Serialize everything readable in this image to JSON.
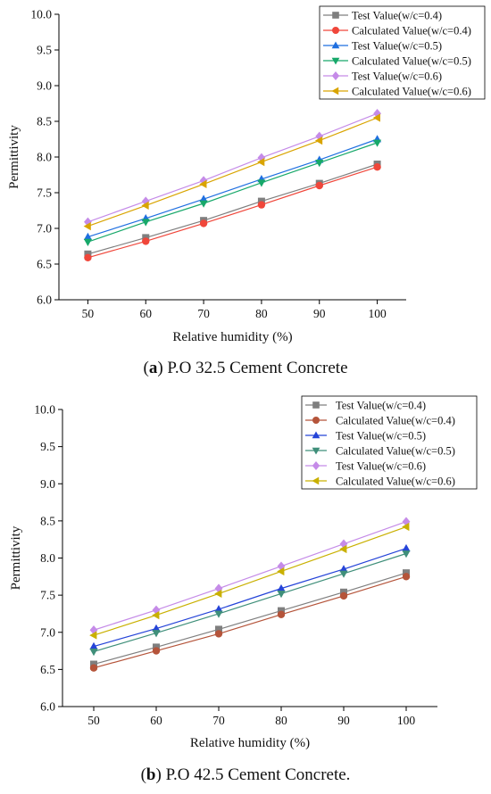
{
  "chart_data": [
    {
      "type": "line",
      "caption_label": "a",
      "caption_text": " P.O 32.5 Cement Concrete",
      "xlabel": "Relative humidity (%)",
      "ylabel": "Permittivity",
      "x": [
        50,
        60,
        70,
        80,
        90,
        100
      ],
      "xticks": [
        50,
        60,
        70,
        80,
        90,
        100
      ],
      "yticks": [
        6.0,
        6.5,
        7.0,
        7.5,
        8.0,
        8.5,
        9.0,
        9.5,
        10.0
      ],
      "xlim": [
        45,
        105
      ],
      "ylim": [
        6.0,
        10.0
      ],
      "legend_position": "top-right",
      "grid": false,
      "series": [
        {
          "name": "Test Value(w/c=0.4)",
          "marker": "square",
          "color": "#7f7f7f",
          "values": [
            6.64,
            6.87,
            7.11,
            7.38,
            7.63,
            7.9
          ]
        },
        {
          "name": "Calculated Value(w/c=0.4)",
          "marker": "circle",
          "color": "#f0463a",
          "values": [
            6.59,
            6.82,
            7.07,
            7.33,
            7.6,
            7.86
          ]
        },
        {
          "name": "Test Value(w/c=0.5)",
          "marker": "triangle-up",
          "color": "#1f6fe0",
          "values": [
            6.88,
            7.14,
            7.41,
            7.69,
            7.96,
            8.25
          ]
        },
        {
          "name": "Calculated Value(w/c=0.5)",
          "marker": "triangle-down",
          "color": "#17a86a",
          "values": [
            6.81,
            7.09,
            7.35,
            7.64,
            7.92,
            8.2
          ]
        },
        {
          "name": "Test Value(w/c=0.6)",
          "marker": "diamond",
          "color": "#c58be8",
          "values": [
            7.09,
            7.38,
            7.67,
            7.99,
            8.29,
            8.61
          ]
        },
        {
          "name": "Calculated Value(w/c=0.6)",
          "marker": "triangle-left",
          "color": "#d9a400",
          "values": [
            7.03,
            7.32,
            7.62,
            7.93,
            8.23,
            8.55
          ]
        }
      ]
    },
    {
      "type": "line",
      "caption_label": "b",
      "caption_text": " P.O 42.5 Cement Concrete.",
      "xlabel": "Relative humidity (%)",
      "ylabel": "Permittivity",
      "x": [
        50,
        60,
        70,
        80,
        90,
        100
      ],
      "xticks": [
        50,
        60,
        70,
        80,
        90,
        100
      ],
      "yticks": [
        6.0,
        6.5,
        7.0,
        7.5,
        8.0,
        8.5,
        9.0,
        9.5,
        10.0
      ],
      "xlim": [
        45,
        105
      ],
      "ylim": [
        6.0,
        10.0
      ],
      "legend_position": "top-right",
      "grid": false,
      "series": [
        {
          "name": "Test Value(w/c=0.4)",
          "marker": "square",
          "color": "#7f7f7f",
          "values": [
            6.57,
            6.8,
            7.04,
            7.29,
            7.54,
            7.8
          ]
        },
        {
          "name": "Calculated Value(w/c=0.4)",
          "marker": "circle",
          "color": "#b5543a",
          "values": [
            6.52,
            6.75,
            6.98,
            7.24,
            7.49,
            7.75
          ]
        },
        {
          "name": "Test Value(w/c=0.5)",
          "marker": "triangle-up",
          "color": "#2544d8",
          "values": [
            6.81,
            7.05,
            7.31,
            7.59,
            7.85,
            8.13
          ]
        },
        {
          "name": "Calculated Value(w/c=0.5)",
          "marker": "triangle-down",
          "color": "#3f8f7a",
          "values": [
            6.74,
            6.99,
            7.25,
            7.52,
            7.79,
            8.06
          ]
        },
        {
          "name": "Test Value(w/c=0.6)",
          "marker": "diamond",
          "color": "#c58be8",
          "values": [
            7.03,
            7.3,
            7.59,
            7.89,
            8.19,
            8.49
          ]
        },
        {
          "name": "Calculated Value(w/c=0.6)",
          "marker": "triangle-left",
          "color": "#c9b000",
          "values": [
            6.96,
            7.23,
            7.52,
            7.82,
            8.12,
            8.42
          ]
        }
      ]
    }
  ]
}
